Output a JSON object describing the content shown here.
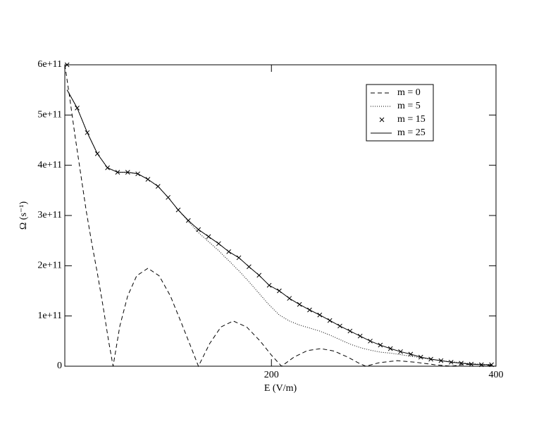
{
  "chart_data": {
    "type": "line",
    "x_label": "E (V/m)",
    "y_label": "Ω (s⁻¹)",
    "xlim": [
      16,
      400
    ],
    "xticks": [
      200,
      400
    ],
    "ylim": [
      0,
      600000000000.0
    ],
    "yticks": [
      0,
      {
        "value": 100000000000.0,
        "label": "1e+11"
      },
      {
        "value": 200000000000.0,
        "label": "2e+11"
      },
      {
        "value": 300000000000.0,
        "label": "3e+11"
      },
      {
        "value": 400000000000.0,
        "label": "4e+11"
      },
      {
        "value": 500000000000.0,
        "label": "5e+11"
      },
      {
        "value": 600000000000.0,
        "label": "6e+11"
      }
    ],
    "legend": "upper right",
    "x": [
      18,
      27,
      36,
      45,
      54,
      63,
      72,
      81,
      90,
      99,
      108,
      117,
      126,
      135,
      144,
      153,
      162,
      171,
      180,
      189,
      198,
      207,
      216,
      225,
      234,
      243,
      252,
      261,
      270,
      279,
      288,
      297,
      306,
      315,
      324,
      333,
      342,
      351,
      360,
      369,
      378,
      387,
      396
    ],
    "series": [
      {
        "name": "m = 0",
        "color": "#000000",
        "style": "dashed",
        "x": [
          16,
          20,
          25,
          30,
          35,
          40,
          45,
          50,
          55,
          59,
          65,
          72,
          80,
          90,
          100,
          110,
          120,
          128,
          135,
          145,
          155,
          166,
          178,
          190,
          200,
          209,
          220,
          232,
          244,
          256,
          268,
          278,
          284,
          296,
          312,
          328,
          345,
          360,
          370,
          380,
          392,
          400
        ],
        "values": [
          600000000000.0,
          540000000000.0,
          460000000000.0,
          385000000000.0,
          310000000000.0,
          245000000000.0,
          185000000000.0,
          120000000000.0,
          50000000000.0,
          0,
          80000000000.0,
          140000000000.0,
          180000000000.0,
          195000000000.0,
          180000000000.0,
          140000000000.0,
          85000000000.0,
          40000000000.0,
          0,
          45000000000.0,
          78000000000.0,
          90000000000.0,
          78000000000.0,
          50000000000.0,
          22000000000.0,
          0,
          18000000000.0,
          31000000000.0,
          35000000000.0,
          30000000000.0,
          18000000000.0,
          6000000000.0,
          0,
          7000000000.0,
          11000000000.0,
          8000000000.0,
          3000000000.0,
          0,
          3000000000.0,
          4000000000.0,
          2000000000.0,
          0
        ]
      },
      {
        "name": "m = 5",
        "color": "#000000",
        "style": "dotted",
        "values": [
          550000000000.0,
          514000000000.0,
          465000000000.0,
          423000000000.0,
          395000000000.0,
          386000000000.0,
          386000000000.0,
          383000000000.0,
          372000000000.0,
          358000000000.0,
          336000000000.0,
          311000000000.0,
          288000000000.0,
          266000000000.0,
          248000000000.0,
          230000000000.0,
          210000000000.0,
          190000000000.0,
          168000000000.0,
          145000000000.0,
          122000000000.0,
          102000000000.0,
          90000000000.0,
          82000000000.0,
          76000000000.0,
          70000000000.0,
          62000000000.0,
          53000000000.0,
          44000000000.0,
          37000000000.0,
          32000000000.0,
          28000000000.0,
          26000000000.0,
          23000000000.0,
          20000000000.0,
          17000000000.0,
          14000000000.0,
          11000000000.0,
          9000000000.0,
          7000000000.0,
          5000000000.0,
          4000000000.0,
          3000000000.0
        ]
      },
      {
        "name": "m = 15",
        "color": "#000000",
        "style": "markers",
        "values": [
          600000000000.0,
          514000000000.0,
          465000000000.0,
          423000000000.0,
          395000000000.0,
          386000000000.0,
          386000000000.0,
          383000000000.0,
          372000000000.0,
          358000000000.0,
          336000000000.0,
          311000000000.0,
          290000000000.0,
          272000000000.0,
          258000000000.0,
          244000000000.0,
          228000000000.0,
          216000000000.0,
          198000000000.0,
          181000000000.0,
          161000000000.0,
          150000000000.0,
          135000000000.0,
          123000000000.0,
          112000000000.0,
          102000000000.0,
          91000000000.0,
          80000000000.0,
          70000000000.0,
          60000000000.0,
          50000000000.0,
          42000000000.0,
          35000000000.0,
          29000000000.0,
          24000000000.0,
          18000000000.0,
          14000000000.0,
          11000000000.0,
          8000000000.0,
          6000000000.0,
          4000000000.0,
          3000000000.0,
          3000000000.0
        ]
      },
      {
        "name": "m = 25",
        "color": "#000000",
        "style": "solid",
        "values": [
          550000000000.0,
          514000000000.0,
          465000000000.0,
          423000000000.0,
          395000000000.0,
          386000000000.0,
          386000000000.0,
          383000000000.0,
          372000000000.0,
          358000000000.0,
          336000000000.0,
          311000000000.0,
          290000000000.0,
          272000000000.0,
          258000000000.0,
          244000000000.0,
          228000000000.0,
          216000000000.0,
          198000000000.0,
          181000000000.0,
          161000000000.0,
          150000000000.0,
          135000000000.0,
          123000000000.0,
          112000000000.0,
          102000000000.0,
          91000000000.0,
          80000000000.0,
          70000000000.0,
          60000000000.0,
          50000000000.0,
          42000000000.0,
          35000000000.0,
          29000000000.0,
          24000000000.0,
          18000000000.0,
          14000000000.0,
          11000000000.0,
          8000000000.0,
          6000000000.0,
          4000000000.0,
          3000000000.0,
          3000000000.0
        ]
      }
    ]
  }
}
